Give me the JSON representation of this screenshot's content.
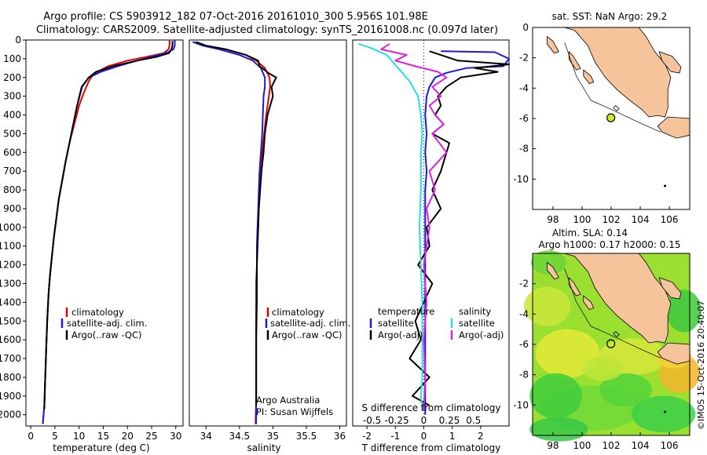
{
  "title": {
    "line1": "Argo profile: CS 5903912_182 07-Oct-2016 20161010_300 5.956S 101.98E",
    "line2": "Climatology: CARS2009. Satellite-adjusted climatology: synTS_20161008.nc (0.097d later)"
  },
  "watermark": "©IMOS 15-Oct-2016 20:40:07",
  "colors": {
    "climatology": "#e00000",
    "satellite": "#1a1adc",
    "argo": "#000000",
    "sal_satellite": "#22e0e8",
    "sal_argo": "#e020e0",
    "land": "#f5c49a",
    "sea": "#ffffff",
    "marker": "#d6e82a"
  },
  "chart_data": [
    {
      "type": "line",
      "panel": "temperature",
      "xlabel": "temperature (deg C)",
      "ylim": [
        2060,
        0
      ],
      "xlim": [
        -1,
        31.5
      ],
      "xticks": [
        0,
        5,
        10,
        15,
        20,
        25,
        30
      ],
      "yticks": [
        0,
        100,
        200,
        300,
        400,
        500,
        600,
        700,
        800,
        900,
        1000,
        1100,
        1200,
        1300,
        1400,
        1500,
        1600,
        1700,
        1800,
        1900,
        2000
      ],
      "legend": [
        "climatology",
        "satellite-adj. clim.",
        "Argo(..raw -QC)"
      ],
      "series": [
        {
          "name": "climatology",
          "x": [
            28.7,
            28.7,
            28.5,
            27.5,
            24,
            20,
            16,
            13,
            12,
            11,
            10,
            9,
            8,
            7.2,
            6.5,
            5.8,
            5.3,
            4.8,
            4.4,
            4,
            3.7,
            3.4,
            3.2,
            3,
            2.8,
            2.5
          ],
          "y": [
            0,
            30,
            50,
            70,
            90,
            110,
            140,
            180,
            220,
            280,
            350,
            450,
            550,
            650,
            750,
            850,
            950,
            1050,
            1150,
            1250,
            1350,
            1500,
            1650,
            1800,
            1950,
            2050
          ]
        },
        {
          "name": "satellite-adj. clim.",
          "x": [
            29.8,
            29.8,
            29.5,
            28,
            25,
            22,
            18,
            14.5,
            12,
            10.5,
            9.6,
            8.8,
            8,
            7.2,
            6.5,
            5.8,
            5.3,
            4.8,
            4.4,
            4,
            3.7,
            3.4,
            3.2,
            3,
            2.8,
            2.5
          ],
          "y": [
            0,
            30,
            50,
            70,
            90,
            110,
            140,
            170,
            200,
            250,
            350,
            450,
            550,
            650,
            750,
            850,
            950,
            1050,
            1150,
            1250,
            1350,
            1500,
            1650,
            1800,
            1950,
            2050
          ]
        },
        {
          "name": "Argo(..raw -QC)",
          "x": [
            29.3,
            29.3,
            29.1,
            28.6,
            26,
            22,
            17,
            13.5,
            12,
            10.6,
            9.6,
            8.8,
            8,
            7.2,
            6.5,
            5.8,
            5.3,
            4.8,
            4.4,
            4,
            3.7,
            3.4,
            3.2,
            3,
            2.8
          ],
          "y": [
            5,
            30,
            50,
            70,
            90,
            110,
            140,
            170,
            200,
            250,
            350,
            450,
            550,
            650,
            750,
            850,
            950,
            1050,
            1150,
            1250,
            1350,
            1500,
            1650,
            1800,
            1970
          ]
        }
      ]
    },
    {
      "type": "line",
      "panel": "salinity",
      "xlabel": "salinity",
      "ylim": [
        2060,
        0
      ],
      "xlim": [
        33.75,
        36.1
      ],
      "xticks": [
        34,
        34.5,
        35,
        35.5,
        36
      ],
      "legend": [
        "climatology",
        "satellite-adj. clim.",
        "Argo(..raw -QC)"
      ],
      "annotation": [
        "Argo Australia",
        "PI: Susan Wijffels"
      ],
      "series": [
        {
          "name": "climatology",
          "x": [
            33.8,
            34.0,
            34.3,
            34.6,
            34.75,
            34.88,
            34.95,
            34.96,
            34.94,
            34.9,
            34.87,
            34.84,
            34.82,
            34.8,
            34.79,
            34.78,
            34.77,
            34.76,
            34.76,
            34.75,
            34.75,
            34.75,
            34.75,
            34.74
          ],
          "y": [
            10,
            30,
            50,
            80,
            110,
            150,
            200,
            250,
            300,
            400,
            500,
            600,
            700,
            800,
            900,
            1000,
            1100,
            1200,
            1300,
            1400,
            1500,
            1700,
            1900,
            2050
          ]
        },
        {
          "name": "satellite-adj. clim.",
          "x": [
            33.8,
            33.95,
            34.2,
            34.5,
            34.7,
            34.82,
            34.88,
            34.88,
            34.86,
            34.85,
            34.84,
            34.82,
            34.8,
            34.79,
            34.78,
            34.77,
            34.76,
            34.76,
            34.75,
            34.75,
            34.75,
            34.75,
            34.75
          ],
          "y": [
            10,
            30,
            50,
            80,
            110,
            150,
            200,
            250,
            300,
            400,
            500,
            600,
            700,
            800,
            900,
            1000,
            1100,
            1200,
            1300,
            1400,
            1500,
            1700,
            2050
          ]
        },
        {
          "name": "Argo(..raw -QC)",
          "x": [
            33.85,
            34.0,
            34.3,
            34.6,
            34.78,
            34.8,
            34.95,
            35.05,
            34.98,
            35.0,
            34.92,
            34.88,
            34.86,
            34.83,
            34.81,
            34.79,
            34.78,
            34.77,
            34.76,
            34.76,
            34.75,
            34.75,
            34.75
          ],
          "y": [
            10,
            30,
            50,
            80,
            110,
            140,
            180,
            200,
            250,
            300,
            400,
            500,
            600,
            700,
            800,
            900,
            1000,
            1100,
            1200,
            1400,
            1600,
            1800,
            1950
          ]
        }
      ]
    },
    {
      "type": "line",
      "panel": "difference",
      "xlabel_top": "S difference from climatology",
      "xlabel": "T difference from climatology",
      "ylim": [
        2060,
        0
      ],
      "xlim": [
        -2.5,
        3
      ],
      "xticks": [
        -2,
        -1,
        0,
        1,
        2
      ],
      "sticks": [
        -0.5,
        -0.25,
        0,
        0.25,
        0.5
      ],
      "sticks_pos": [
        -1.82,
        -0.95,
        0,
        0.9,
        1.75
      ],
      "legend_headers": [
        "temperature",
        "salinity"
      ],
      "legend": [
        "satellite",
        "Argo(-adj)",
        "satellite",
        "Argo(-adj)"
      ],
      "series": [
        {
          "name": "satellite",
          "x": [
            0.6,
            2.5,
            3,
            2.8,
            1.5,
            0.8,
            0.4,
            0.2,
            0.1,
            0.05,
            0.1,
            0.05,
            0.1,
            0.05,
            0.05,
            0.05,
            0.05,
            0.05,
            0.05
          ],
          "y": [
            60,
            65,
            100,
            140,
            150,
            175,
            200,
            250,
            300,
            400,
            500,
            600,
            700,
            800,
            1000,
            1200,
            1500,
            1800,
            2000
          ]
        },
        {
          "name": "Argo(-adj)",
          "x": [
            0.2,
            1.2,
            3,
            1.8,
            2.6,
            1.3,
            0.8,
            0.5,
            0.6,
            0.4,
            0.7,
            0.3,
            0.9,
            0.8,
            0.6,
            0.3,
            0.6,
            0.1,
            0.2,
            -0.2,
            0.3,
            0,
            -0.3,
            -0.1,
            -0.5,
            0.2,
            -0.4,
            0.2
          ],
          "y": [
            60,
            110,
            130,
            150,
            170,
            200,
            250,
            300,
            350,
            400,
            450,
            500,
            550,
            600,
            700,
            800,
            900,
            1000,
            1100,
            1200,
            1300,
            1400,
            1500,
            1600,
            1700,
            1800,
            1900,
            1950
          ]
        },
        {
          "name": "salinity satellite",
          "x": [
            -2.3,
            -1.9,
            -1.3,
            -0.9,
            -0.5,
            -0.2,
            -0.1,
            -0.05,
            -0.1,
            -0.1,
            -0.15,
            -0.1,
            -0.05,
            -0.05,
            -0.05,
            -0.05,
            -0.1,
            -0.05
          ],
          "y": [
            20,
            40,
            80,
            150,
            220,
            300,
            400,
            500,
            600,
            800,
            1000,
            1200,
            1400,
            1600,
            1700,
            1800,
            1900,
            1980
          ]
        },
        {
          "name": "salinity Argo(-adj)",
          "x": [
            -1.2,
            -1.5,
            -0.6,
            -1.0,
            -0.3,
            0.5,
            0.8,
            0.3,
            0.6,
            0.2,
            0.4,
            0.7,
            0.3,
            0.8,
            0.2,
            0.4,
            0.1,
            0.2,
            0,
            0.1,
            0,
            0.05,
            0
          ],
          "y": [
            20,
            50,
            80,
            110,
            140,
            170,
            200,
            250,
            300,
            350,
            400,
            450,
            500,
            600,
            700,
            800,
            900,
            1000,
            1200,
            1400,
            1600,
            1800,
            1980
          ]
        }
      ]
    },
    {
      "type": "map",
      "panel": "sst-map",
      "title": "sat. SST: NaN Argo: 29.2",
      "xlim": [
        96.6,
        107.4
      ],
      "ylim": [
        -12,
        0
      ],
      "xticks": [
        98,
        100,
        102,
        104,
        106
      ],
      "yticks": [
        0,
        -2,
        -4,
        -6,
        -8,
        -10
      ],
      "marker": {
        "lon": 101.98,
        "lat": -5.956
      }
    },
    {
      "type": "map",
      "panel": "sla-map",
      "title_line1": "Altim. SLA: 0.14",
      "title_line2": "Argo h1000: 0.17 h2000: 0.15",
      "xlim": [
        96.6,
        107.4
      ],
      "ylim": [
        -12,
        0
      ],
      "xticks": [
        98,
        100,
        102,
        104,
        106
      ],
      "yticks": [
        -2,
        -4,
        -6,
        -8,
        -10
      ],
      "marker": {
        "lon": 101.98,
        "lat": -5.956
      }
    }
  ]
}
